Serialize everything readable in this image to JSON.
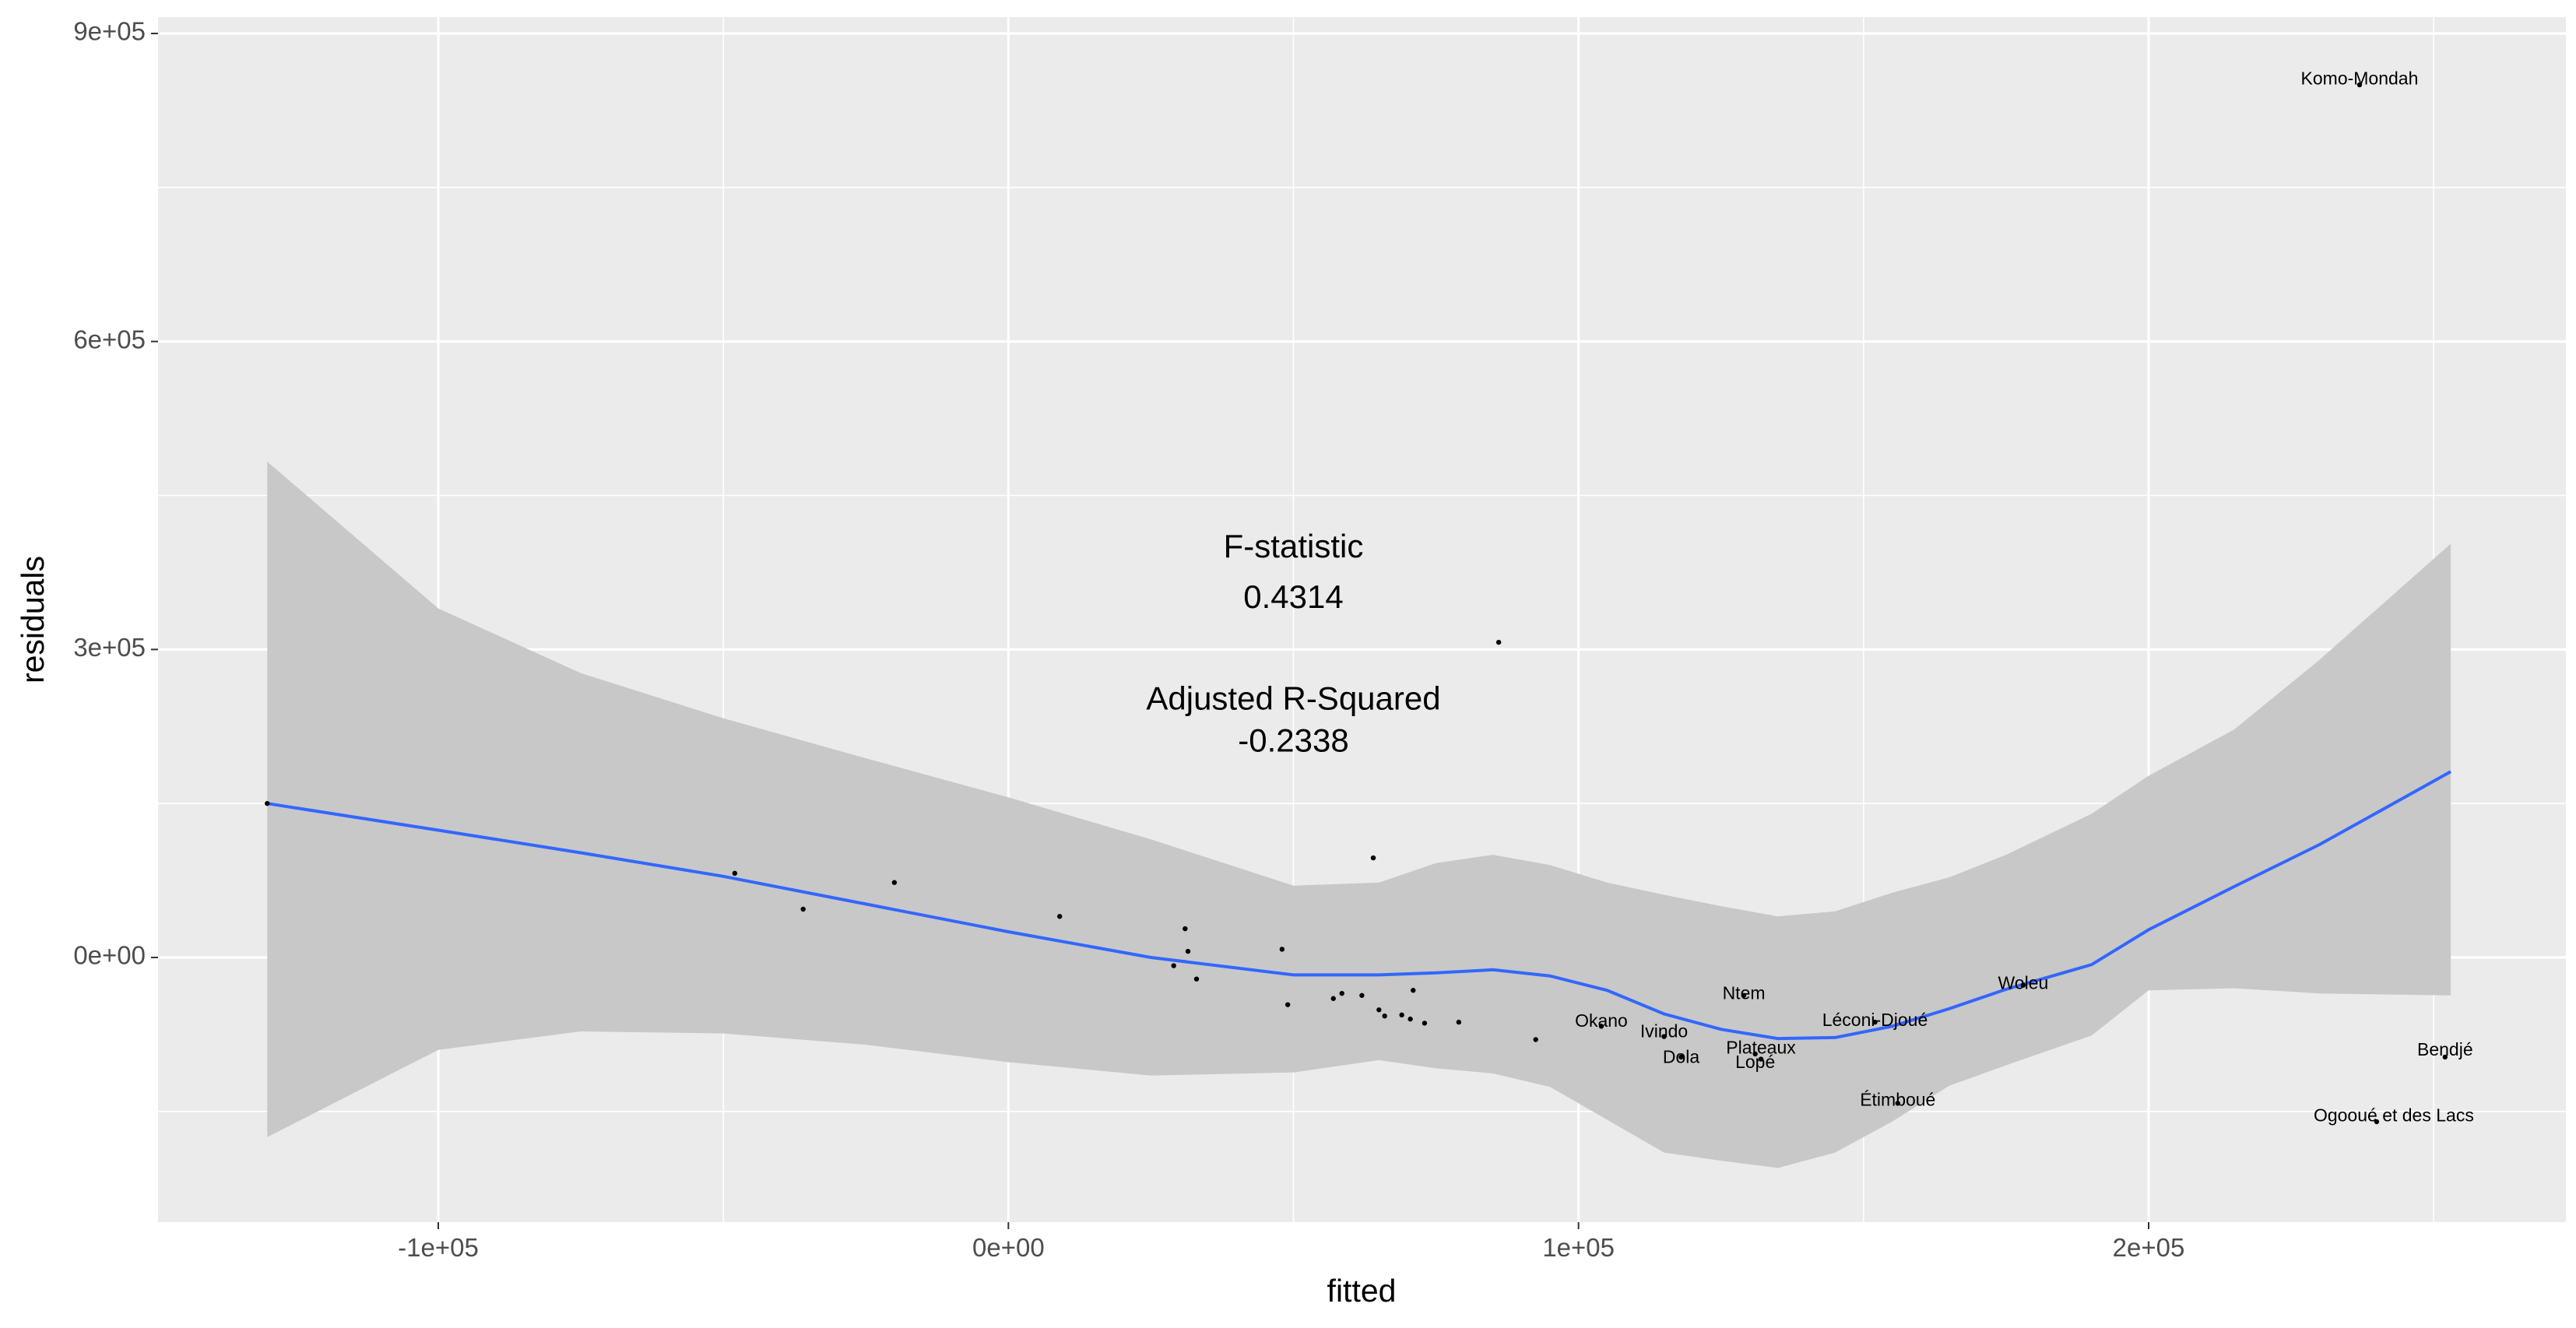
{
  "chart_data": {
    "type": "scatter",
    "xlabel": "fitted",
    "ylabel": "residuals",
    "xlim": [
      -150000,
      255000
    ],
    "ylim": [
      -255000,
      905000
    ],
    "x_ticks": [
      {
        "value": -100000,
        "label": "-1e+05"
      },
      {
        "value": 0,
        "label": "0e+00"
      },
      {
        "value": 100000,
        "label": "1e+05"
      },
      {
        "value": 200000,
        "label": "2e+05"
      }
    ],
    "y_ticks": [
      {
        "value": 0,
        "label": "0e+00"
      },
      {
        "value": 300000,
        "label": "3e+05"
      },
      {
        "value": 600000,
        "label": "6e+05"
      },
      {
        "value": 900000,
        "label": "9e+05"
      }
    ],
    "grid": true,
    "colors": {
      "panel": "#ebebeb",
      "grid": "#ffffff",
      "ribbon": "#c8c8c8",
      "smooth": "#3366ff",
      "point": "#000000"
    },
    "points": [
      {
        "x": -130000,
        "y": 150000
      },
      {
        "x": -48000,
        "y": 82000
      },
      {
        "x": -36000,
        "y": 47000
      },
      {
        "x": -20000,
        "y": 73000
      },
      {
        "x": 9000,
        "y": 40000
      },
      {
        "x": 29000,
        "y": -8000
      },
      {
        "x": 31000,
        "y": 28000
      },
      {
        "x": 31500,
        "y": 6000
      },
      {
        "x": 33000,
        "y": -21000
      },
      {
        "x": 48000,
        "y": 8000
      },
      {
        "x": 49000,
        "y": -46000
      },
      {
        "x": 57000,
        "y": -40000
      },
      {
        "x": 58500,
        "y": -35000
      },
      {
        "x": 62000,
        "y": -37000
      },
      {
        "x": 64000,
        "y": 97000
      },
      {
        "x": 65000,
        "y": -51000
      },
      {
        "x": 66000,
        "y": -57000
      },
      {
        "x": 69000,
        "y": -56000
      },
      {
        "x": 70500,
        "y": -60000
      },
      {
        "x": 71000,
        "y": -32000
      },
      {
        "x": 73000,
        "y": -64000
      },
      {
        "x": 79000,
        "y": -63000
      },
      {
        "x": 86000,
        "y": 307000
      },
      {
        "x": 92500,
        "y": -80000
      },
      {
        "x": 104000,
        "y": -67000
      },
      {
        "x": 115000,
        "y": -77000
      },
      {
        "x": 118000,
        "y": -97000
      },
      {
        "x": 129000,
        "y": -37000
      },
      {
        "x": 131000,
        "y": -94000
      },
      {
        "x": 132000,
        "y": -99000
      },
      {
        "x": 152000,
        "y": -63000
      },
      {
        "x": 156000,
        "y": -142000
      },
      {
        "x": 178000,
        "y": -27000
      },
      {
        "x": 237000,
        "y": 850000
      },
      {
        "x": 240000,
        "y": -160000
      },
      {
        "x": 252000,
        "y": -97000
      }
    ],
    "labels": [
      {
        "text": "Komo-Mondah",
        "x": 237000,
        "y": 855000
      },
      {
        "text": "Woleu",
        "x": 178000,
        "y": -26000
      },
      {
        "text": "Ntem",
        "x": 129000,
        "y": -36000
      },
      {
        "text": "Léconi-Djoué",
        "x": 152000,
        "y": -62000
      },
      {
        "text": "Okano",
        "x": 104000,
        "y": -63000
      },
      {
        "text": "Ivindo",
        "x": 115000,
        "y": -73000
      },
      {
        "text": "Plateaux",
        "x": 132000,
        "y": -89000
      },
      {
        "text": "Dola",
        "x": 118000,
        "y": -98000
      },
      {
        "text": "Lopé",
        "x": 131000,
        "y": -103000
      },
      {
        "text": "Étimboué",
        "x": 156000,
        "y": -140000
      },
      {
        "text": "Bendjé",
        "x": 252000,
        "y": -91000
      },
      {
        "text": "Ogooué et des Lacs",
        "x": 243000,
        "y": -155000
      }
    ],
    "smooth": {
      "x": [
        -130000,
        -100000,
        -75000,
        -50000,
        -25000,
        0,
        25000,
        50000,
        65000,
        75000,
        85000,
        95000,
        105000,
        115000,
        125000,
        135000,
        145000,
        155000,
        165000,
        175000,
        190000,
        200000,
        215000,
        230000,
        253000
      ],
      "y": [
        150000,
        124000,
        102000,
        79000,
        52000,
        25000,
        0,
        -17000,
        -17000,
        -15000,
        -12000,
        -18000,
        -32000,
        -55000,
        -70000,
        -79000,
        -78000,
        -67000,
        -50000,
        -31000,
        -7000,
        27000,
        69000,
        110000,
        181000
      ],
      "lower": [
        -175000,
        -90000,
        -72000,
        -74000,
        -85000,
        -102000,
        -115000,
        -112000,
        -100000,
        -108000,
        -113000,
        -126000,
        -158000,
        -190000,
        -198000,
        -205000,
        -190000,
        -160000,
        -125000,
        -105000,
        -76000,
        -32000,
        -30000,
        -35000,
        -37000
      ],
      "upper": [
        483000,
        340000,
        277000,
        233000,
        194000,
        156000,
        115000,
        70000,
        73000,
        92000,
        100000,
        90000,
        73000,
        61000,
        50000,
        40000,
        45000,
        63000,
        78000,
        100000,
        140000,
        177000,
        222000,
        290000,
        403000
      ]
    },
    "annotations": [
      {
        "text": "F-statistic",
        "x": 50000,
        "y": 398000
      },
      {
        "text": "0.4314",
        "x": 50000,
        "y": 349000
      },
      {
        "text": "Adjusted R-Squared",
        "x": 50000,
        "y": 250000
      },
      {
        "text": "-0.2338",
        "x": 50000,
        "y": 209000
      }
    ]
  }
}
